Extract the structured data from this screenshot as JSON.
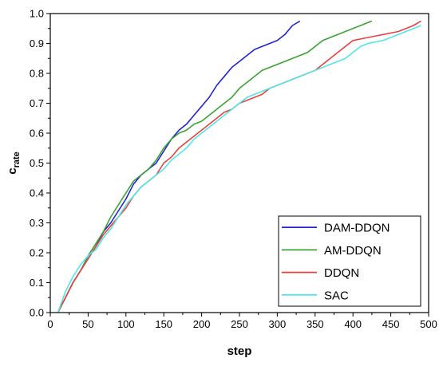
{
  "chart_data": {
    "type": "line",
    "title": "",
    "xlabel": "step",
    "ylabel": "c",
    "ylabel_subscript": "rate",
    "xlim": [
      0,
      500
    ],
    "ylim": [
      0,
      1.0
    ],
    "xticks": [
      "0",
      "50",
      "100",
      "150",
      "200",
      "250",
      "300",
      "350",
      "400",
      "450",
      "500"
    ],
    "yticks": [
      "0.0",
      "0.1",
      "0.2",
      "0.3",
      "0.4",
      "0.5",
      "0.6",
      "0.7",
      "0.8",
      "0.9",
      "1.0"
    ],
    "grid": false,
    "legend_position": "bottom-right",
    "series": [
      {
        "name": "DAM-DDQN",
        "color": "#2323d6",
        "x": [
          10,
          20,
          30,
          40,
          50,
          60,
          70,
          80,
          90,
          100,
          110,
          120,
          130,
          140,
          150,
          160,
          170,
          180,
          190,
          200,
          210,
          220,
          230,
          240,
          250,
          260,
          270,
          280,
          290,
          300,
          310,
          320,
          330
        ],
        "y": [
          0.0,
          0.05,
          0.1,
          0.14,
          0.18,
          0.22,
          0.27,
          0.3,
          0.34,
          0.38,
          0.43,
          0.46,
          0.48,
          0.5,
          0.54,
          0.58,
          0.61,
          0.63,
          0.66,
          0.69,
          0.72,
          0.76,
          0.79,
          0.82,
          0.84,
          0.86,
          0.88,
          0.89,
          0.9,
          0.91,
          0.93,
          0.96,
          0.975
        ]
      },
      {
        "name": "AM-DDQN",
        "color": "#3aa334",
        "x": [
          10,
          20,
          30,
          40,
          50,
          60,
          70,
          80,
          90,
          100,
          110,
          120,
          130,
          140,
          150,
          160,
          170,
          180,
          190,
          200,
          210,
          220,
          230,
          240,
          250,
          260,
          270,
          280,
          290,
          300,
          310,
          320,
          330,
          340,
          350,
          360,
          370,
          380,
          390,
          400,
          410,
          420,
          425
        ],
        "y": [
          0.0,
          0.05,
          0.1,
          0.14,
          0.19,
          0.23,
          0.27,
          0.32,
          0.36,
          0.4,
          0.44,
          0.46,
          0.48,
          0.51,
          0.55,
          0.58,
          0.6,
          0.61,
          0.63,
          0.64,
          0.66,
          0.68,
          0.7,
          0.72,
          0.75,
          0.77,
          0.79,
          0.81,
          0.82,
          0.83,
          0.84,
          0.85,
          0.86,
          0.87,
          0.89,
          0.91,
          0.92,
          0.93,
          0.94,
          0.95,
          0.96,
          0.97,
          0.975
        ]
      },
      {
        "name": "DDQN",
        "color": "#e8413d",
        "x": [
          10,
          20,
          30,
          40,
          50,
          60,
          70,
          80,
          90,
          100,
          110,
          120,
          130,
          140,
          150,
          160,
          170,
          180,
          190,
          200,
          210,
          220,
          230,
          240,
          250,
          260,
          270,
          280,
          290,
          300,
          310,
          320,
          330,
          340,
          350,
          360,
          370,
          380,
          390,
          400,
          410,
          420,
          430,
          440,
          450,
          460,
          470,
          480,
          490
        ],
        "y": [
          0.0,
          0.05,
          0.1,
          0.14,
          0.18,
          0.22,
          0.26,
          0.29,
          0.32,
          0.35,
          0.39,
          0.42,
          0.44,
          0.46,
          0.5,
          0.52,
          0.55,
          0.57,
          0.59,
          0.61,
          0.63,
          0.65,
          0.67,
          0.68,
          0.7,
          0.71,
          0.72,
          0.73,
          0.75,
          0.76,
          0.77,
          0.78,
          0.79,
          0.8,
          0.81,
          0.83,
          0.85,
          0.87,
          0.89,
          0.91,
          0.915,
          0.92,
          0.925,
          0.93,
          0.935,
          0.94,
          0.95,
          0.96,
          0.975
        ]
      },
      {
        "name": "SAC",
        "color": "#4fe6ea",
        "x": [
          10,
          20,
          30,
          40,
          50,
          60,
          70,
          80,
          90,
          100,
          110,
          120,
          130,
          140,
          150,
          160,
          170,
          180,
          190,
          200,
          210,
          220,
          230,
          240,
          250,
          260,
          270,
          280,
          290,
          300,
          310,
          320,
          330,
          340,
          350,
          360,
          370,
          380,
          390,
          400,
          410,
          420,
          430,
          440,
          450,
          460,
          470,
          480,
          490
        ],
        "y": [
          0.0,
          0.07,
          0.12,
          0.16,
          0.19,
          0.21,
          0.25,
          0.28,
          0.32,
          0.36,
          0.39,
          0.42,
          0.44,
          0.46,
          0.48,
          0.51,
          0.53,
          0.55,
          0.58,
          0.6,
          0.62,
          0.64,
          0.66,
          0.68,
          0.7,
          0.72,
          0.73,
          0.74,
          0.75,
          0.76,
          0.77,
          0.78,
          0.79,
          0.8,
          0.81,
          0.82,
          0.83,
          0.84,
          0.85,
          0.87,
          0.89,
          0.9,
          0.905,
          0.91,
          0.92,
          0.93,
          0.94,
          0.95,
          0.96
        ]
      }
    ]
  }
}
